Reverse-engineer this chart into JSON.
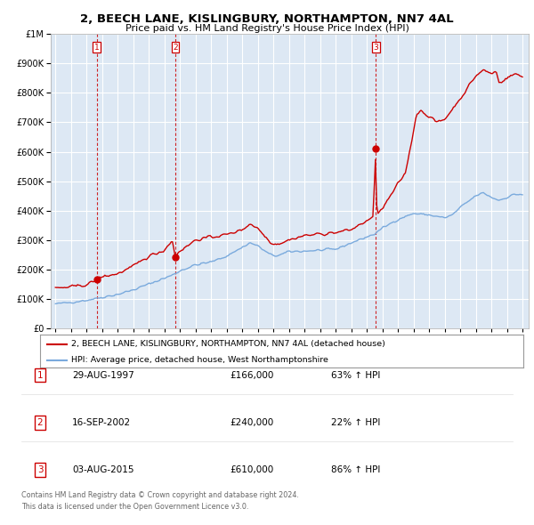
{
  "title": "2, BEECH LANE, KISLINGBURY, NORTHAMPTON, NN7 4AL",
  "subtitle": "Price paid vs. HM Land Registry's House Price Index (HPI)",
  "sale_prices": [
    166000,
    240000,
    610000
  ],
  "sale_years_decimal": [
    1997.664,
    2002.706,
    2015.586
  ],
  "sale_labels": [
    "1",
    "2",
    "3"
  ],
  "legend_property": "2, BEECH LANE, KISLINGBURY, NORTHAMPTON, NN7 4AL (detached house)",
  "legend_hpi": "HPI: Average price, detached house, West Northamptonshire",
  "table_rows": [
    {
      "label": "1",
      "date": "29-AUG-1997",
      "price": "£166,000",
      "change": "63% ↑ HPI"
    },
    {
      "label": "2",
      "date": "16-SEP-2002",
      "price": "£240,000",
      "change": "22% ↑ HPI"
    },
    {
      "label": "3",
      "date": "03-AUG-2015",
      "price": "£610,000",
      "change": "86% ↑ HPI"
    }
  ],
  "footer1": "Contains HM Land Registry data © Crown copyright and database right 2024.",
  "footer2": "This data is licensed under the Open Government Licence v3.0.",
  "property_line_color": "#cc0000",
  "hpi_line_color": "#7aaadd",
  "vline_color": "#cc0000",
  "plot_bg_color": "#dde8f4",
  "grid_color": "#ffffff",
  "ylim": [
    0,
    1000000
  ],
  "xlim_start": 1994.7,
  "xlim_end": 2025.4,
  "hpi_anchors_x": [
    1995.0,
    1996.0,
    1997.0,
    1998.0,
    1999.0,
    2000.0,
    2001.0,
    2002.0,
    2002.5,
    2003.0,
    2004.0,
    2005.0,
    2006.0,
    2007.0,
    2007.5,
    2008.0,
    2008.5,
    2009.0,
    2009.5,
    2010.0,
    2011.0,
    2012.0,
    2013.0,
    2014.0,
    2015.0,
    2015.5,
    2016.0,
    2017.0,
    2018.0,
    2019.0,
    2019.5,
    2020.0,
    2020.5,
    2021.0,
    2021.5,
    2022.0,
    2022.5,
    2023.0,
    2023.5,
    2024.0,
    2024.5,
    2025.0
  ],
  "hpi_anchors_y": [
    82000,
    88000,
    95000,
    105000,
    115000,
    130000,
    150000,
    170000,
    180000,
    195000,
    215000,
    225000,
    245000,
    275000,
    290000,
    280000,
    260000,
    245000,
    250000,
    260000,
    262000,
    265000,
    268000,
    290000,
    310000,
    320000,
    340000,
    370000,
    390000,
    385000,
    380000,
    375000,
    385000,
    410000,
    430000,
    450000,
    460000,
    445000,
    435000,
    445000,
    455000,
    455000
  ],
  "prop_anchors_x": [
    1995.0,
    1996.0,
    1997.0,
    1997.5,
    1997.664,
    1998.0,
    1999.0,
    2000.0,
    2001.0,
    2002.0,
    2002.5,
    2002.706,
    2002.9,
    2003.5,
    2004.0,
    2005.0,
    2006.0,
    2007.0,
    2007.5,
    2008.0,
    2008.5,
    2009.0,
    2009.5,
    2010.0,
    2011.0,
    2012.0,
    2013.0,
    2014.0,
    2015.0,
    2015.4,
    2015.586,
    2015.65,
    2015.8,
    2016.0,
    2017.0,
    2017.5,
    2018.0,
    2018.2,
    2018.5,
    2019.0,
    2019.5,
    2020.0,
    2021.0,
    2022.0,
    2022.5,
    2023.0,
    2023.3,
    2023.5,
    2024.0,
    2024.5,
    2025.0
  ],
  "prop_anchors_y": [
    135000,
    140000,
    148000,
    160000,
    166000,
    175000,
    185000,
    210000,
    245000,
    265000,
    300000,
    240000,
    260000,
    280000,
    300000,
    310000,
    318000,
    335000,
    355000,
    340000,
    310000,
    285000,
    290000,
    300000,
    315000,
    320000,
    325000,
    335000,
    365000,
    375000,
    610000,
    390000,
    395000,
    405000,
    490000,
    530000,
    670000,
    730000,
    740000,
    720000,
    700000,
    710000,
    780000,
    858000,
    878000,
    865000,
    875000,
    835000,
    850000,
    865000,
    855000
  ]
}
